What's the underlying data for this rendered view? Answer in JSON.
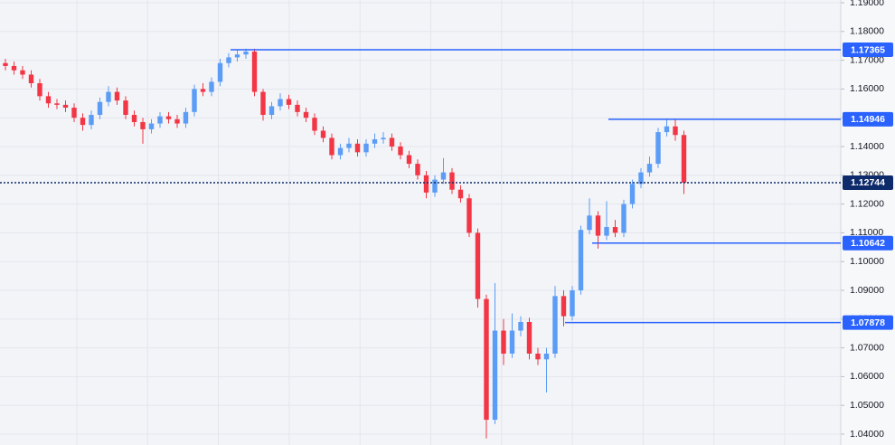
{
  "chart_data": {
    "type": "candlestick",
    "up_color": "#5b9cf6",
    "down_color": "#f23645",
    "level_color": "#2962ff",
    "last_color": "#0d2b6b",
    "grid": true,
    "ylim": [
      1.03623,
      1.19094
    ],
    "yticks": [
      {
        "value": 1.19,
        "label": "1.19000"
      },
      {
        "value": 1.18,
        "label": "1.18000"
      },
      {
        "value": 1.17,
        "label": "1.17000"
      },
      {
        "value": 1.16,
        "label": "1.16000"
      },
      {
        "value": 1.15,
        "label": "1.15000"
      },
      {
        "value": 1.14,
        "label": "1.14000"
      },
      {
        "value": 1.13,
        "label": "1.13000"
      },
      {
        "value": 1.12,
        "label": "1.12000"
      },
      {
        "value": 1.11,
        "label": "1.11000"
      },
      {
        "value": 1.1,
        "label": "1.10000"
      },
      {
        "value": 1.09,
        "label": "1.09000"
      },
      {
        "value": 1.08,
        "label": "1.08000"
      },
      {
        "value": 1.07,
        "label": "1.07000"
      },
      {
        "value": 1.06,
        "label": "1.06000"
      },
      {
        "value": 1.05,
        "label": "1.05000"
      },
      {
        "value": 1.04,
        "label": "1.04000"
      }
    ],
    "levels": [
      1.17365,
      1.14946,
      1.10642,
      1.07878
    ],
    "last_price": 1.12744,
    "open": [
      1.169,
      1.168,
      1.1665,
      1.165,
      1.162,
      1.1575,
      1.155,
      1.1545,
      1.1535,
      1.15,
      1.1475,
      1.151,
      1.1555,
      1.159,
      1.156,
      1.151,
      1.1485,
      1.146,
      1.148,
      1.1505,
      1.1495,
      1.148,
      1.152,
      1.16,
      1.159,
      1.1625,
      1.169,
      1.171,
      1.172,
      1.173,
      1.159,
      1.151,
      1.154,
      1.1565,
      1.1545,
      1.152,
      1.15,
      1.1455,
      1.143,
      1.137,
      1.1395,
      1.141,
      1.138,
      1.141,
      1.1425,
      1.143,
      1.14,
      1.137,
      1.134,
      1.13,
      1.124,
      1.1285,
      1.131,
      1.125,
      1.122,
      1.11,
      1.087,
      1.045,
      1.076,
      1.068,
      1.076,
      1.079,
      1.068,
      1.066,
      1.068,
      1.088,
      1.081,
      1.09,
      1.111,
      1.116,
      1.109,
      1.112,
      1.11,
      1.12,
      1.127,
      1.131,
      1.134,
      1.145,
      1.147,
      1.144
    ],
    "high": [
      1.1705,
      1.1695,
      1.168,
      1.1665,
      1.1635,
      1.159,
      1.1565,
      1.156,
      1.155,
      1.1515,
      1.1525,
      1.157,
      1.161,
      1.1605,
      1.1575,
      1.1525,
      1.15,
      1.1495,
      1.152,
      1.152,
      1.151,
      1.1535,
      1.1615,
      1.162,
      1.164,
      1.1705,
      1.1725,
      1.1735,
      1.174,
      1.174,
      1.16,
      1.1555,
      1.1585,
      1.158,
      1.156,
      1.1535,
      1.1515,
      1.147,
      1.1445,
      1.141,
      1.143,
      1.1425,
      1.1425,
      1.1445,
      1.145,
      1.1445,
      1.1415,
      1.1385,
      1.1355,
      1.1315,
      1.13,
      1.136,
      1.1325,
      1.1265,
      1.1235,
      1.1115,
      1.0885,
      1.0925,
      1.08,
      1.082,
      1.081,
      1.0805,
      1.07,
      1.07,
      1.0915,
      1.09,
      1.0915,
      1.1125,
      1.122,
      1.1175,
      1.121,
      1.1145,
      1.1215,
      1.1285,
      1.1325,
      1.1365,
      1.1465,
      1.1495,
      1.1495,
      1.1455
    ],
    "low": [
      1.1665,
      1.165,
      1.1635,
      1.1605,
      1.156,
      1.1535,
      1.153,
      1.152,
      1.1485,
      1.1455,
      1.146,
      1.1495,
      1.154,
      1.1545,
      1.1495,
      1.147,
      1.141,
      1.1445,
      1.1465,
      1.148,
      1.1465,
      1.1465,
      1.1505,
      1.1575,
      1.1575,
      1.161,
      1.1675,
      1.1695,
      1.1705,
      1.1575,
      1.149,
      1.1495,
      1.1525,
      1.153,
      1.1505,
      1.1485,
      1.144,
      1.1415,
      1.1355,
      1.1355,
      1.138,
      1.1365,
      1.1365,
      1.1395,
      1.141,
      1.1385,
      1.1355,
      1.1325,
      1.1285,
      1.122,
      1.1225,
      1.127,
      1.1235,
      1.1205,
      1.1085,
      1.084,
      1.0385,
      1.0435,
      1.064,
      1.0665,
      1.074,
      1.066,
      1.064,
      1.0545,
      1.0665,
      1.0775,
      1.0795,
      1.0885,
      1.1095,
      1.1045,
      1.1075,
      1.1085,
      1.1085,
      1.1185,
      1.1255,
      1.1295,
      1.1325,
      1.1435,
      1.142,
      1.1235
    ],
    "close": [
      1.168,
      1.1665,
      1.165,
      1.162,
      1.1575,
      1.155,
      1.1545,
      1.1535,
      1.15,
      1.1475,
      1.151,
      1.1555,
      1.159,
      1.156,
      1.151,
      1.1485,
      1.146,
      1.148,
      1.1505,
      1.1495,
      1.148,
      1.152,
      1.16,
      1.159,
      1.1625,
      1.169,
      1.171,
      1.172,
      1.173,
      1.159,
      1.151,
      1.154,
      1.1565,
      1.1545,
      1.152,
      1.15,
      1.1455,
      1.143,
      1.137,
      1.1395,
      1.141,
      1.138,
      1.141,
      1.1425,
      1.143,
      1.14,
      1.137,
      1.134,
      1.13,
      1.124,
      1.1285,
      1.131,
      1.125,
      1.122,
      1.11,
      1.087,
      1.045,
      1.076,
      1.068,
      1.076,
      1.079,
      1.068,
      1.066,
      1.068,
      1.088,
      1.081,
      1.09,
      1.111,
      1.116,
      1.109,
      1.112,
      1.11,
      1.12,
      1.127,
      1.131,
      1.134,
      1.145,
      1.147,
      1.144,
      1.12744
    ]
  }
}
